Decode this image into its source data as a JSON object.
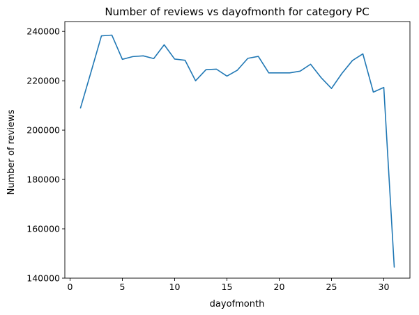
{
  "chart_data": {
    "type": "line",
    "title": "Number of reviews vs dayofmonth for category PC",
    "xlabel": "dayofmonth",
    "ylabel": "Number of reviews",
    "xlim": [
      -0.5,
      32.5
    ],
    "ylim": [
      140000,
      244000
    ],
    "xticks": [
      0,
      5,
      10,
      15,
      20,
      25,
      30
    ],
    "yticks": [
      140000,
      160000,
      180000,
      200000,
      220000,
      240000
    ],
    "grid": false,
    "legend": "none",
    "series": [
      {
        "color": "#1f77b4",
        "x": [
          1,
          2,
          3,
          4,
          5,
          6,
          7,
          8,
          9,
          10,
          11,
          12,
          13,
          14,
          15,
          16,
          17,
          18,
          19,
          20,
          21,
          22,
          23,
          24,
          25,
          26,
          27,
          28,
          29,
          30,
          31
        ],
        "y": [
          209000,
          223500,
          238200,
          238500,
          228700,
          229800,
          230100,
          229000,
          234600,
          228800,
          228300,
          220000,
          224500,
          224700,
          221900,
          224300,
          229100,
          229900,
          223200,
          223200,
          223200,
          223900,
          226700,
          221300,
          216900,
          223000,
          228200,
          230900,
          215400,
          217300,
          144500
        ]
      }
    ]
  }
}
